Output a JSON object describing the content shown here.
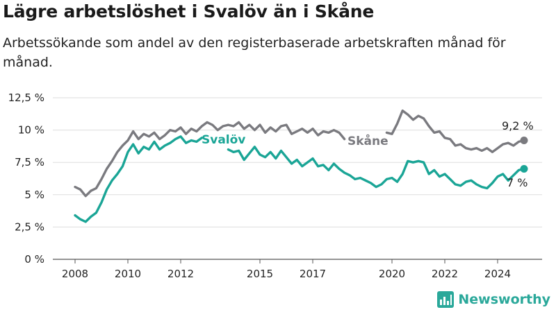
{
  "title": "Lägre arbetslöshet i Svalöv än i Skåne",
  "subtitle": "Arbetssökande som andel av den registerbaserade arbetskraften månad för månad.",
  "logo_text": "Newsworthy",
  "colors": {
    "skane": "#7a7a7f",
    "svalov": "#1aa596",
    "grid": "#dddddd",
    "axis": "#555555",
    "brand": "#2aa89a"
  },
  "chart_data": {
    "type": "line",
    "title": "Lägre arbetslöshet i Svalöv än i Skåne",
    "subtitle": "Arbetssökande som andel av den registerbaserade arbetskraften månad för månad.",
    "xlabel": "",
    "ylabel": "",
    "ylim": [
      0,
      12.5
    ],
    "xlim": [
      2007.5,
      2025.5
    ],
    "yticks": [
      0,
      2.5,
      5,
      7.5,
      10,
      12.5
    ],
    "ytick_labels": [
      "0 %",
      "2,5 %",
      "5 %",
      "7,5 %",
      "10 %",
      "12,5 %"
    ],
    "xticks": [
      2008,
      2010,
      2012,
      2015,
      2017,
      2020,
      2022,
      2024
    ],
    "xtick_labels": [
      "2008",
      "2010",
      "2012",
      "2015",
      "2017",
      "2020",
      "2022",
      "2024"
    ],
    "grid": true,
    "legend": "inline labels",
    "series": [
      {
        "name": "Skåne",
        "end_label": "9,2 %",
        "segments": [
          [
            [
              2008.0,
              5.6
            ],
            [
              2008.2,
              5.4
            ],
            [
              2008.4,
              4.9
            ],
            [
              2008.6,
              5.3
            ],
            [
              2008.8,
              5.5
            ],
            [
              2009.0,
              6.2
            ],
            [
              2009.2,
              7.0
            ],
            [
              2009.4,
              7.6
            ],
            [
              2009.6,
              8.3
            ],
            [
              2009.8,
              8.8
            ],
            [
              2010.0,
              9.2
            ],
            [
              2010.2,
              9.9
            ],
            [
              2010.4,
              9.3
            ],
            [
              2010.6,
              9.7
            ],
            [
              2010.8,
              9.5
            ],
            [
              2011.0,
              9.8
            ],
            [
              2011.2,
              9.3
            ],
            [
              2011.4,
              9.6
            ],
            [
              2011.6,
              10.0
            ],
            [
              2011.8,
              9.9
            ],
            [
              2012.0,
              10.2
            ],
            [
              2012.2,
              9.7
            ],
            [
              2012.4,
              10.1
            ],
            [
              2012.6,
              9.9
            ],
            [
              2012.8,
              10.3
            ],
            [
              2013.0,
              10.6
            ],
            [
              2013.2,
              10.4
            ],
            [
              2013.4,
              10.0
            ],
            [
              2013.6,
              10.3
            ],
            [
              2013.8,
              10.4
            ],
            [
              2014.0,
              10.3
            ],
            [
              2014.2,
              10.6
            ],
            [
              2014.4,
              10.1
            ],
            [
              2014.6,
              10.4
            ],
            [
              2014.8,
              10.0
            ],
            [
              2015.0,
              10.4
            ],
            [
              2015.2,
              9.8
            ],
            [
              2015.4,
              10.2
            ],
            [
              2015.6,
              9.9
            ],
            [
              2015.8,
              10.3
            ],
            [
              2016.0,
              10.4
            ],
            [
              2016.2,
              9.7
            ],
            [
              2016.4,
              9.9
            ],
            [
              2016.6,
              10.1
            ],
            [
              2016.8,
              9.8
            ],
            [
              2017.0,
              10.1
            ],
            [
              2017.2,
              9.6
            ],
            [
              2017.4,
              9.9
            ],
            [
              2017.6,
              9.8
            ],
            [
              2017.8,
              10.0
            ],
            [
              2018.0,
              9.8
            ],
            [
              2018.2,
              9.3
            ]
          ],
          [
            [
              2019.8,
              9.8
            ],
            [
              2020.0,
              9.7
            ],
            [
              2020.2,
              10.5
            ],
            [
              2020.4,
              11.5
            ],
            [
              2020.6,
              11.2
            ],
            [
              2020.8,
              10.8
            ],
            [
              2021.0,
              11.1
            ],
            [
              2021.2,
              10.9
            ],
            [
              2021.4,
              10.3
            ],
            [
              2021.6,
              9.8
            ],
            [
              2021.8,
              9.9
            ],
            [
              2022.0,
              9.4
            ],
            [
              2022.2,
              9.3
            ],
            [
              2022.4,
              8.8
            ],
            [
              2022.6,
              8.9
            ],
            [
              2022.8,
              8.6
            ],
            [
              2023.0,
              8.5
            ],
            [
              2023.2,
              8.6
            ],
            [
              2023.4,
              8.4
            ],
            [
              2023.6,
              8.6
            ],
            [
              2023.8,
              8.3
            ],
            [
              2024.0,
              8.6
            ],
            [
              2024.2,
              8.9
            ],
            [
              2024.4,
              9.0
            ],
            [
              2024.6,
              8.8
            ],
            [
              2024.8,
              9.1
            ],
            [
              2025.0,
              9.2
            ]
          ]
        ]
      },
      {
        "name": "Svalöv",
        "end_label": "7 %",
        "segments": [
          [
            [
              2008.0,
              3.4
            ],
            [
              2008.2,
              3.1
            ],
            [
              2008.4,
              2.9
            ],
            [
              2008.6,
              3.3
            ],
            [
              2008.8,
              3.6
            ],
            [
              2009.0,
              4.4
            ],
            [
              2009.2,
              5.4
            ],
            [
              2009.4,
              6.1
            ],
            [
              2009.6,
              6.6
            ],
            [
              2009.8,
              7.2
            ],
            [
              2010.0,
              8.3
            ],
            [
              2010.2,
              8.9
            ],
            [
              2010.4,
              8.2
            ],
            [
              2010.6,
              8.7
            ],
            [
              2010.8,
              8.5
            ],
            [
              2011.0,
              9.1
            ],
            [
              2011.2,
              8.5
            ],
            [
              2011.4,
              8.8
            ],
            [
              2011.6,
              9.0
            ],
            [
              2011.8,
              9.3
            ],
            [
              2012.0,
              9.5
            ],
            [
              2012.2,
              9.0
            ],
            [
              2012.4,
              9.2
            ],
            [
              2012.6,
              9.1
            ],
            [
              2012.8,
              9.4
            ]
          ],
          [
            [
              2013.8,
              8.5
            ],
            [
              2014.0,
              8.3
            ],
            [
              2014.2,
              8.4
            ],
            [
              2014.4,
              7.7
            ],
            [
              2014.6,
              8.2
            ],
            [
              2014.8,
              8.7
            ],
            [
              2015.0,
              8.1
            ],
            [
              2015.2,
              7.9
            ],
            [
              2015.4,
              8.3
            ],
            [
              2015.6,
              7.8
            ],
            [
              2015.8,
              8.4
            ],
            [
              2016.0,
              7.9
            ],
            [
              2016.2,
              7.4
            ],
            [
              2016.4,
              7.7
            ],
            [
              2016.6,
              7.2
            ],
            [
              2016.8,
              7.5
            ],
            [
              2017.0,
              7.8
            ],
            [
              2017.2,
              7.2
            ],
            [
              2017.4,
              7.3
            ],
            [
              2017.6,
              6.9
            ],
            [
              2017.8,
              7.4
            ],
            [
              2018.0,
              7.0
            ],
            [
              2018.2,
              6.7
            ],
            [
              2018.4,
              6.5
            ],
            [
              2018.6,
              6.2
            ],
            [
              2018.8,
              6.3
            ],
            [
              2019.0,
              6.1
            ],
            [
              2019.2,
              5.9
            ],
            [
              2019.4,
              5.6
            ],
            [
              2019.6,
              5.8
            ],
            [
              2019.8,
              6.2
            ],
            [
              2020.0,
              6.3
            ],
            [
              2020.2,
              6.0
            ],
            [
              2020.4,
              6.6
            ],
            [
              2020.6,
              7.6
            ],
            [
              2020.8,
              7.5
            ],
            [
              2021.0,
              7.6
            ],
            [
              2021.2,
              7.5
            ],
            [
              2021.4,
              6.6
            ],
            [
              2021.6,
              6.9
            ],
            [
              2021.8,
              6.4
            ],
            [
              2022.0,
              6.6
            ],
            [
              2022.2,
              6.2
            ],
            [
              2022.4,
              5.8
            ],
            [
              2022.6,
              5.7
            ],
            [
              2022.8,
              6.0
            ],
            [
              2023.0,
              6.1
            ],
            [
              2023.2,
              5.8
            ],
            [
              2023.4,
              5.6
            ],
            [
              2023.6,
              5.5
            ],
            [
              2023.8,
              5.9
            ],
            [
              2024.0,
              6.4
            ],
            [
              2024.2,
              6.6
            ],
            [
              2024.4,
              6.1
            ],
            [
              2024.6,
              6.5
            ],
            [
              2024.8,
              6.9
            ],
            [
              2025.0,
              7.0
            ]
          ]
        ]
      }
    ]
  }
}
